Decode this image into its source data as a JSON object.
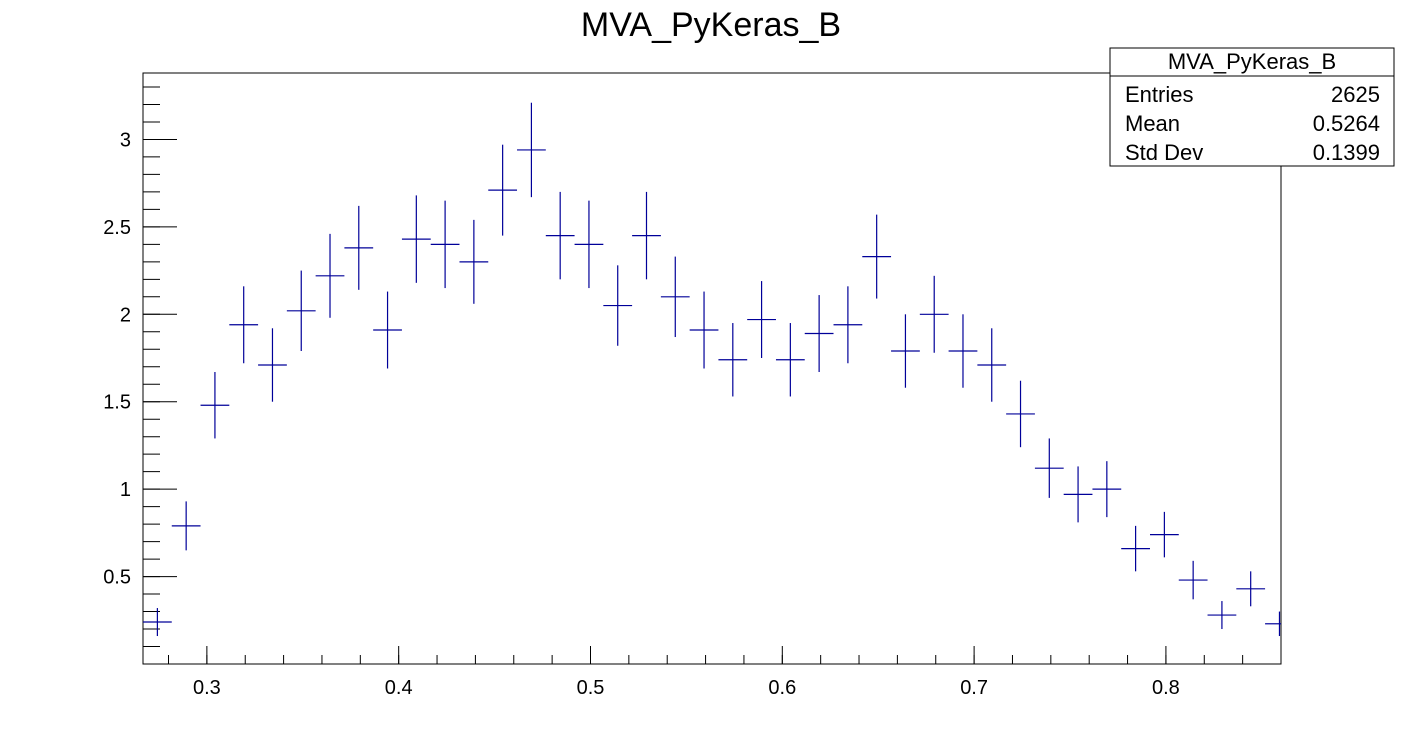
{
  "chart_data": {
    "type": "scatter",
    "title": "MVA_PyKeras_B",
    "xlabel": "",
    "ylabel": "",
    "xlim": [
      0.2667,
      0.86
    ],
    "ylim": [
      0.0,
      3.38
    ],
    "x_ticks": [
      0.3,
      0.4,
      0.5,
      0.6,
      0.7,
      0.8
    ],
    "x_tick_labels": [
      "0.3",
      "0.4",
      "0.5",
      "0.6",
      "0.7",
      "0.8"
    ],
    "y_ticks": [
      0.5,
      1,
      1.5,
      2,
      2.5,
      3
    ],
    "y_tick_labels": [
      "0.5",
      "1",
      "1.5",
      "2",
      "2.5",
      "3"
    ],
    "grid": false,
    "legend": "none",
    "marker_color": "#000099",
    "bin_half_width": 0.0075,
    "series": [
      {
        "points": [
          {
            "x": 0.2742,
            "y": 0.24,
            "err": 0.08
          },
          {
            "x": 0.2892,
            "y": 0.79,
            "err": 0.14
          },
          {
            "x": 0.3042,
            "y": 1.48,
            "err": 0.19
          },
          {
            "x": 0.3192,
            "y": 1.94,
            "err": 0.22
          },
          {
            "x": 0.3342,
            "y": 1.71,
            "err": 0.21
          },
          {
            "x": 0.3492,
            "y": 2.02,
            "err": 0.23
          },
          {
            "x": 0.3642,
            "y": 2.22,
            "err": 0.24
          },
          {
            "x": 0.3792,
            "y": 2.38,
            "err": 0.24
          },
          {
            "x": 0.3942,
            "y": 1.91,
            "err": 0.22
          },
          {
            "x": 0.4092,
            "y": 2.43,
            "err": 0.25
          },
          {
            "x": 0.4242,
            "y": 2.4,
            "err": 0.25
          },
          {
            "x": 0.4392,
            "y": 2.3,
            "err": 0.24
          },
          {
            "x": 0.4542,
            "y": 2.71,
            "err": 0.26
          },
          {
            "x": 0.4692,
            "y": 2.94,
            "err": 0.27
          },
          {
            "x": 0.4842,
            "y": 2.45,
            "err": 0.25
          },
          {
            "x": 0.4992,
            "y": 2.4,
            "err": 0.25
          },
          {
            "x": 0.5142,
            "y": 2.05,
            "err": 0.23
          },
          {
            "x": 0.5292,
            "y": 2.45,
            "err": 0.25
          },
          {
            "x": 0.5442,
            "y": 2.1,
            "err": 0.23
          },
          {
            "x": 0.5592,
            "y": 1.91,
            "err": 0.22
          },
          {
            "x": 0.5742,
            "y": 1.74,
            "err": 0.21
          },
          {
            "x": 0.5892,
            "y": 1.97,
            "err": 0.22
          },
          {
            "x": 0.6042,
            "y": 1.74,
            "err": 0.21
          },
          {
            "x": 0.6192,
            "y": 1.89,
            "err": 0.22
          },
          {
            "x": 0.6342,
            "y": 1.94,
            "err": 0.22
          },
          {
            "x": 0.6492,
            "y": 2.33,
            "err": 0.24
          },
          {
            "x": 0.6642,
            "y": 1.79,
            "err": 0.21
          },
          {
            "x": 0.6792,
            "y": 2.0,
            "err": 0.22
          },
          {
            "x": 0.6942,
            "y": 1.79,
            "err": 0.21
          },
          {
            "x": 0.7092,
            "y": 1.71,
            "err": 0.21
          },
          {
            "x": 0.7242,
            "y": 1.43,
            "err": 0.19
          },
          {
            "x": 0.7392,
            "y": 1.12,
            "err": 0.17
          },
          {
            "x": 0.7542,
            "y": 0.97,
            "err": 0.16
          },
          {
            "x": 0.7692,
            "y": 1.0,
            "err": 0.16
          },
          {
            "x": 0.7842,
            "y": 0.66,
            "err": 0.13
          },
          {
            "x": 0.7992,
            "y": 0.74,
            "err": 0.13
          },
          {
            "x": 0.8142,
            "y": 0.48,
            "err": 0.11
          },
          {
            "x": 0.8292,
            "y": 0.28,
            "err": 0.08
          },
          {
            "x": 0.8442,
            "y": 0.43,
            "err": 0.1
          },
          {
            "x": 0.8592,
            "y": 0.23,
            "err": 0.07
          }
        ]
      }
    ]
  },
  "stats_box": {
    "title": "MVA_PyKeras_B",
    "rows": [
      {
        "label": "Entries",
        "value": "2625"
      },
      {
        "label": "Mean",
        "value": "0.5264"
      },
      {
        "label": "Std Dev",
        "value": "0.1399"
      }
    ]
  }
}
